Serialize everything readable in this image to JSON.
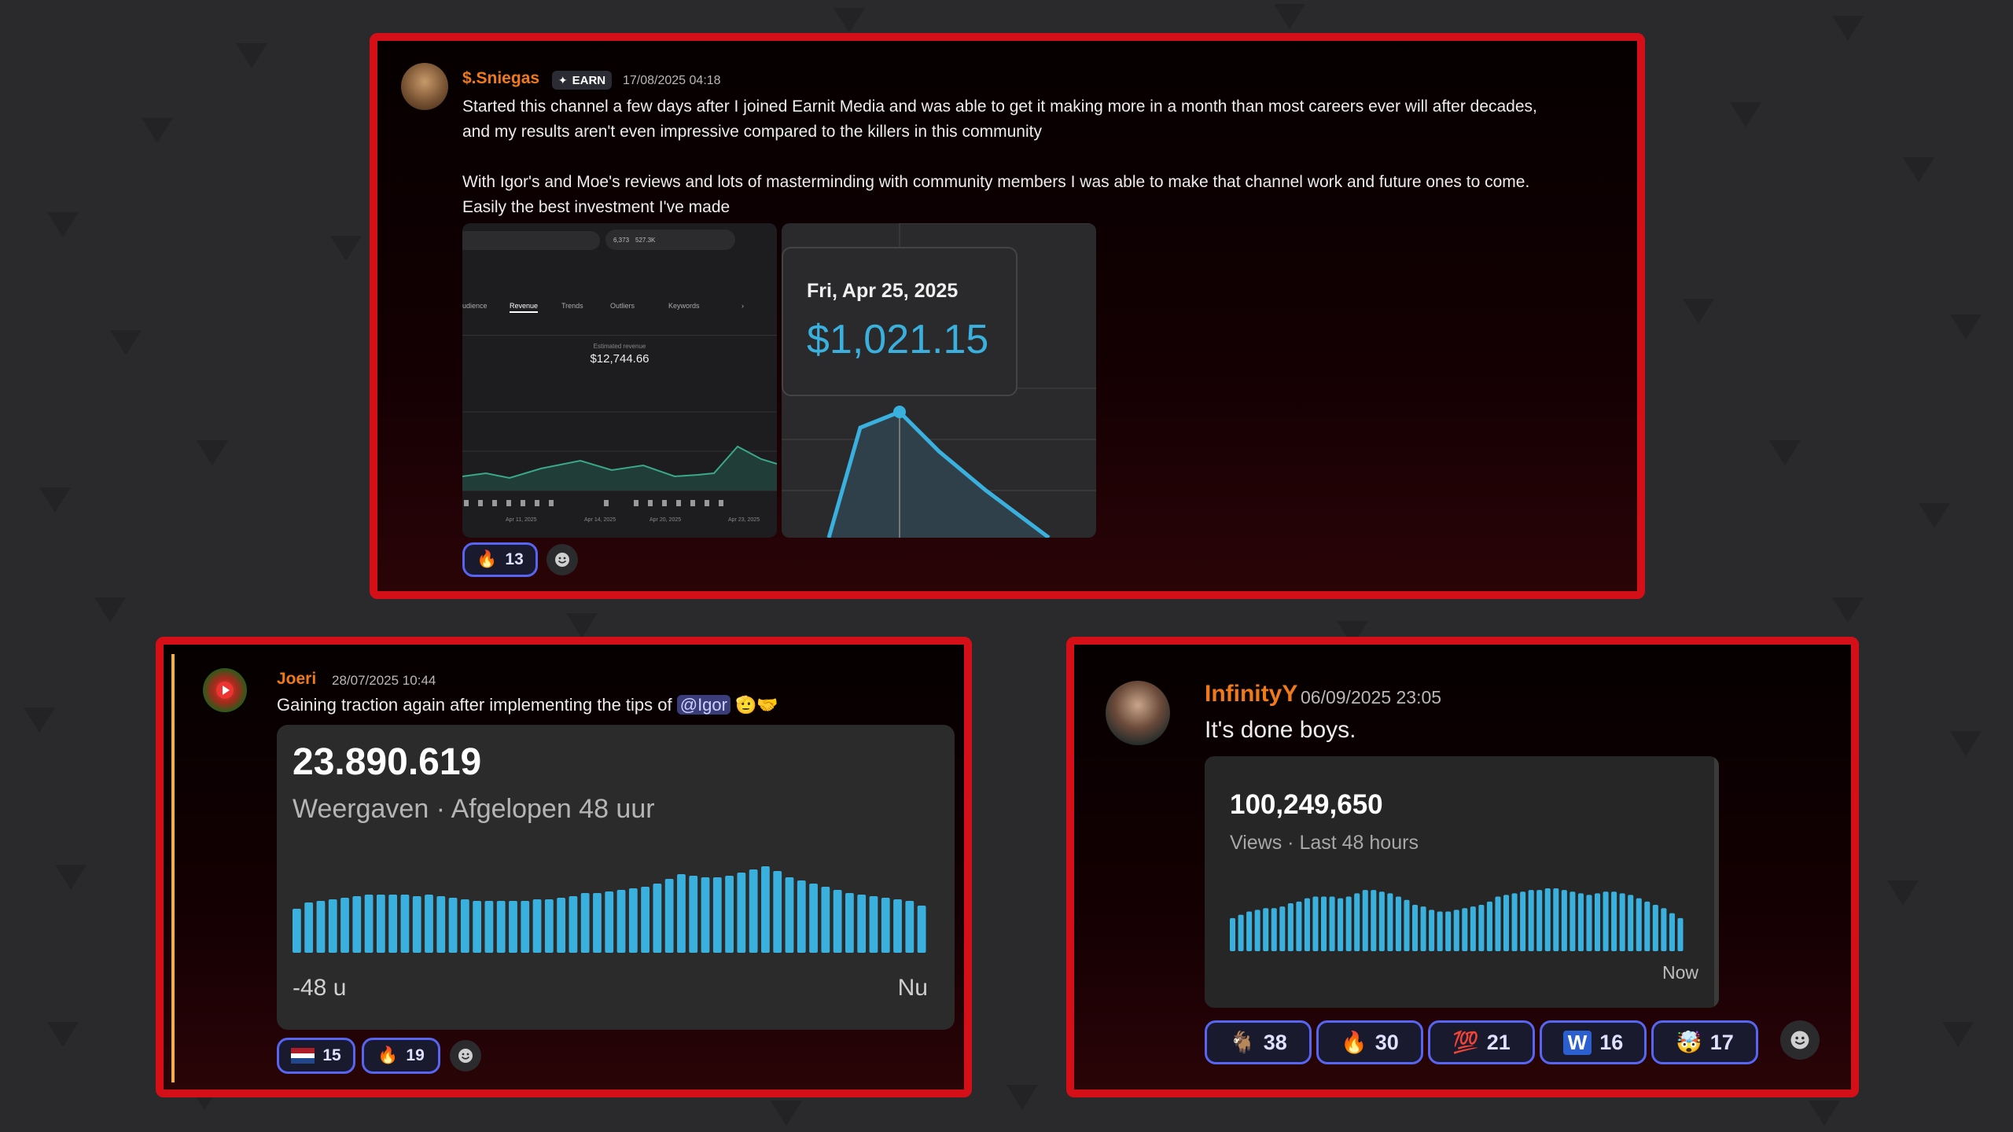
{
  "colors": {
    "frame": "#d40f18",
    "username": "#f07a1a",
    "reaction_border": "#5865f2",
    "bar": "#3ab0de",
    "accent_value": "#3ab0de"
  },
  "post1": {
    "username": "$.Sniegas",
    "tag": "EARN",
    "tag_icon": "sparkle-icon",
    "timestamp": "17/08/2025 04:18",
    "line1": "Started this channel a few days after I joined Earnit Media and was able to get it making more in a month than most careers ever will after decades,",
    "line2": "and my results aren't even impressive compared to the killers in this community",
    "line3": "With Igor's and Moe's reviews and lots of masterminding with community members I was able to make that channel work and future ones to come.",
    "line4": "Easily the best investment I've made",
    "shot1": {
      "stats": [
        "6,373",
        "527.3K"
      ],
      "tabs": [
        "udience",
        "Revenue",
        "Trends",
        "Outliers",
        "Keywords"
      ],
      "est_label": "Estimated revenue",
      "est_value": "$12,744.66",
      "x_ticks": [
        "Apr 11, 2025",
        "Apr 14, 2025",
        "Apr 20, 2025",
        "Apr 23, 2025"
      ]
    },
    "shot2": {
      "date": "Fri, Apr 25, 2025",
      "value": "$1,021.15"
    },
    "reactions": [
      {
        "icon": "fire-icon",
        "emoji": "🔥",
        "count": "13"
      }
    ]
  },
  "post2": {
    "username": "Joeri",
    "timestamp": "28/07/2025 10:44",
    "text_before": "Gaining traction again after implementing the tips of ",
    "mention": "@Igor",
    "emojis": "🫡🤝",
    "big_number": "23.890.619",
    "subtitle": "Weergaven · Afgelopen 48 uur",
    "x_left": "-48 u",
    "x_right": "Nu",
    "bars": [
      28,
      32,
      33,
      34,
      35,
      36,
      37,
      37,
      37,
      37,
      36,
      37,
      36,
      35,
      34,
      33,
      33,
      33,
      33,
      33,
      34,
      34,
      35,
      36,
      38,
      38,
      39,
      40,
      41,
      42,
      44,
      47,
      50,
      49,
      48,
      48,
      49,
      51,
      53,
      55,
      52,
      48,
      46,
      44,
      42,
      40,
      38,
      37,
      36,
      35,
      34,
      33,
      30
    ],
    "reactions": [
      {
        "icon": "netherlands-flag-icon",
        "emoji": "",
        "count": "15"
      },
      {
        "icon": "fire-icon",
        "emoji": "🔥",
        "count": "19"
      }
    ]
  },
  "post3": {
    "username": "InfinityY",
    "timestamp": "06/09/2025 23:05",
    "text": "It's done boys.",
    "big_number": "100,249,650",
    "subtitle": "Views · Last 48 hours",
    "x_right": "Now",
    "bars": [
      20,
      22,
      24,
      25,
      26,
      26,
      27,
      29,
      30,
      32,
      33,
      33,
      33,
      32,
      33,
      35,
      37,
      37,
      36,
      35,
      33,
      31,
      28,
      27,
      25,
      24,
      24,
      25,
      26,
      27,
      28,
      30,
      33,
      34,
      35,
      36,
      37,
      37,
      38,
      38,
      37,
      36,
      35,
      34,
      35,
      36,
      36,
      35,
      34,
      32,
      30,
      28,
      26,
      23,
      20
    ],
    "reactions": [
      {
        "icon": "goat-icon",
        "emoji": "🐐",
        "count": "38"
      },
      {
        "icon": "fire-icon",
        "emoji": "🔥",
        "count": "30"
      },
      {
        "icon": "hundred-icon",
        "emoji": "💯",
        "count": "21"
      },
      {
        "icon": "w-icon",
        "emoji": "W",
        "count": "16"
      },
      {
        "icon": "mind-blown-icon",
        "emoji": "🤯",
        "count": "17"
      }
    ]
  }
}
